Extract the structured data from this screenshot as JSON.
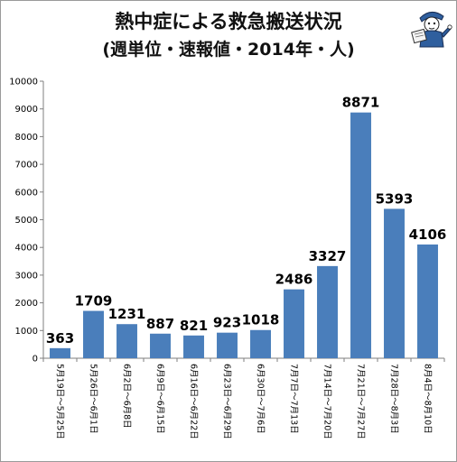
{
  "chart_data": {
    "type": "bar",
    "title": "熱中症による救急搬送状況",
    "subtitle": "(週単位・速報値・2014年・人)",
    "xlabel": "",
    "ylabel": "",
    "ylim": [
      0,
      10000
    ],
    "yticks": [
      0,
      1000,
      2000,
      3000,
      4000,
      5000,
      6000,
      7000,
      8000,
      9000,
      10000
    ],
    "grid": false,
    "legend": "none",
    "categories": [
      "5月19日～5月25日",
      "5月26日～6月1日",
      "6月2日～6月8日",
      "6月9日～6月15日",
      "6月16日～6月22日",
      "6月23日～6月29日",
      "6月30日～7月6日",
      "7月7日～7月13日",
      "7月14日～7月20日",
      "7月21日～7月27日",
      "7月28日～8月3日",
      "8月4日～8月10日"
    ],
    "values": [
      363,
      1709,
      1231,
      887,
      821,
      923,
      1018,
      2486,
      3327,
      8871,
      5393,
      4106
    ],
    "bar_color": "#4a7ebb"
  },
  "decor": {
    "mascot": "newspaper-reader-mascot-icon"
  }
}
